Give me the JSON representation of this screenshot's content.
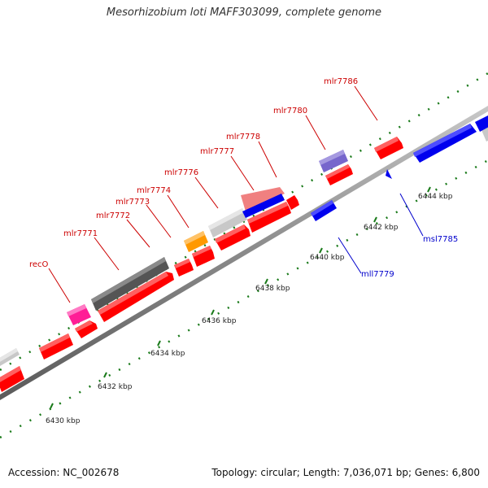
{
  "title": "Mesorhizobium loti MAFF303099, complete genome",
  "footer": {
    "accession": "Accession: NC_002678",
    "summary": "Topology: circular; Length: 7,036,071 bp; Genes: 6,800"
  },
  "colors": {
    "label_forward": "#cc0000",
    "label_reverse": "#0000cc",
    "ruler_tick": "#1a7a1a",
    "backbone": "#999999"
  },
  "ruler_labels": [
    "6430 kbp",
    "6432 kbp",
    "6434 kbp",
    "6436 kbp",
    "6438 kbp",
    "6440 kbp",
    "6442 kbp",
    "6444 kbp"
  ],
  "gene_labels": [
    {
      "text": "recO",
      "strand": "forward"
    },
    {
      "text": "mlr7771",
      "strand": "forward"
    },
    {
      "text": "mlr7772",
      "strand": "forward"
    },
    {
      "text": "mlr7773",
      "strand": "forward"
    },
    {
      "text": "mlr7774",
      "strand": "forward"
    },
    {
      "text": "mlr7776",
      "strand": "forward"
    },
    {
      "text": "mlr7777",
      "strand": "forward"
    },
    {
      "text": "mlr7778",
      "strand": "forward"
    },
    {
      "text": "mlr7780",
      "strand": "forward"
    },
    {
      "text": "mlr7786",
      "strand": "forward"
    },
    {
      "text": "mll7779",
      "strand": "reverse"
    },
    {
      "text": "msl7785",
      "strand": "reverse"
    }
  ]
}
